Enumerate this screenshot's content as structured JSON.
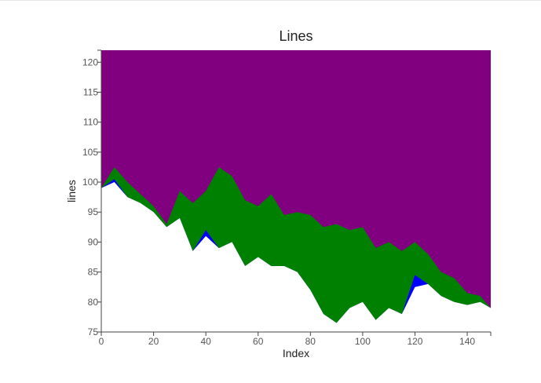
{
  "chart_data": {
    "type": "area",
    "title": "Lines",
    "xlabel": "Index",
    "ylabel": "lines",
    "xlim": [
      0,
      149
    ],
    "ylim": [
      75,
      122
    ],
    "xticks": [
      0,
      20,
      40,
      60,
      80,
      100,
      120,
      140
    ],
    "yticks": [
      75,
      80,
      85,
      90,
      95,
      100,
      105,
      110,
      115,
      120
    ],
    "grid": true,
    "legend": "none",
    "x": [
      0,
      5,
      10,
      15,
      20,
      25,
      30,
      35,
      40,
      45,
      50,
      55,
      60,
      65,
      70,
      75,
      80,
      85,
      90,
      95,
      100,
      105,
      110,
      115,
      120,
      125,
      130,
      135,
      140,
      145,
      149
    ],
    "series": [
      {
        "color": "#ffffff",
        "values": [
          99,
          100,
          97.5,
          96.5,
          95,
          92.5,
          94,
          88.5,
          91,
          89,
          90,
          86,
          87.5,
          86,
          86,
          85,
          82,
          78,
          76.5,
          79,
          80,
          77,
          79,
          78,
          82.5,
          83,
          81,
          80,
          79.5,
          80,
          79
        ]
      },
      {
        "color": "#0000ff",
        "values": [
          99,
          100.5,
          97.5,
          96.5,
          95,
          92.5,
          94,
          88.5,
          92,
          89,
          90,
          86,
          87.5,
          86,
          86,
          85,
          82,
          78,
          76.5,
          79,
          80,
          77,
          79,
          78,
          84.5,
          83,
          81,
          80,
          79.5,
          80,
          79
        ]
      },
      {
        "color": "#008000",
        "values": [
          99,
          102.5,
          100,
          98,
          96,
          93,
          98.5,
          96.5,
          98.5,
          102.5,
          101,
          97,
          96,
          98,
          94.5,
          95,
          94.5,
          92.5,
          93,
          92,
          92.5,
          89,
          90,
          88.5,
          90,
          88,
          85,
          84,
          81.5,
          81,
          79
        ]
      },
      {
        "color": "#800080",
        "values": [
          122,
          122,
          122,
          122,
          122,
          122,
          122,
          122,
          122,
          122,
          122,
          122,
          122,
          122,
          122,
          122,
          122,
          122,
          122,
          122,
          122,
          122,
          122,
          122,
          122,
          122,
          122,
          122,
          122,
          122,
          122
        ]
      }
    ]
  }
}
